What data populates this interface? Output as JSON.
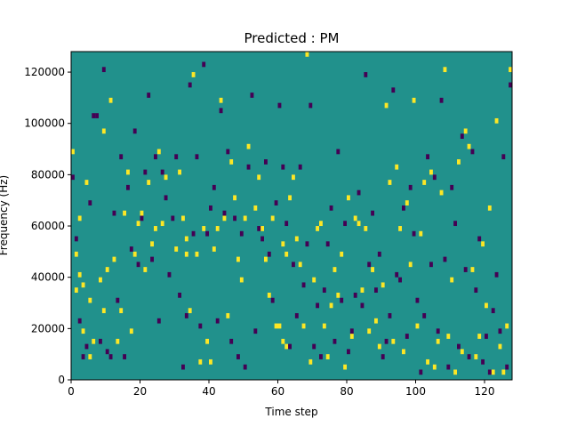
{
  "chart_data": {
    "type": "heatmap",
    "title": "Predicted : PM",
    "xlabel": "Time step",
    "ylabel": "Frequency (Hz)",
    "xlim": [
      0,
      128
    ],
    "ylim": [
      0,
      128000
    ],
    "x_ticks": [
      0,
      20,
      40,
      60,
      80,
      100,
      120
    ],
    "y_ticks": [
      0,
      20000,
      40000,
      60000,
      80000,
      100000,
      120000
    ],
    "x_tick_labels": [
      "0",
      "20",
      "40",
      "60",
      "80",
      "100",
      "120"
    ],
    "y_tick_labels": [
      "0",
      "20000",
      "40000",
      "60000",
      "80000",
      "100000",
      "120000"
    ],
    "grid": false,
    "legend": "none",
    "colors": {
      "background_value": "#21918c",
      "high_value": "#fde725",
      "low_value": "#440154"
    },
    "cells": {
      "time_step_width": 1,
      "frequency_bin_height": 2000,
      "high": [
        [
          0,
          88000
        ],
        [
          1,
          48000
        ],
        [
          1,
          34000
        ],
        [
          2,
          62000
        ],
        [
          2,
          40000
        ],
        [
          3,
          36000
        ],
        [
          3,
          18000
        ],
        [
          4,
          76000
        ],
        [
          5,
          30000
        ],
        [
          5,
          8000
        ],
        [
          6,
          14000
        ],
        [
          8,
          38000
        ],
        [
          9,
          26000
        ],
        [
          9,
          96000
        ],
        [
          10,
          42000
        ],
        [
          11,
          108000
        ],
        [
          12,
          46000
        ],
        [
          13,
          14000
        ],
        [
          14,
          26000
        ],
        [
          15,
          64000
        ],
        [
          16,
          80000
        ],
        [
          17,
          18000
        ],
        [
          18,
          48000
        ],
        [
          19,
          60000
        ],
        [
          20,
          64000
        ],
        [
          21,
          42000
        ],
        [
          22,
          76000
        ],
        [
          23,
          52000
        ],
        [
          24,
          58000
        ],
        [
          25,
          88000
        ],
        [
          26,
          60000
        ],
        [
          27,
          78000
        ],
        [
          30,
          50000
        ],
        [
          31,
          80000
        ],
        [
          32,
          62000
        ],
        [
          33,
          54000
        ],
        [
          33,
          48000
        ],
        [
          34,
          26000
        ],
        [
          35,
          118000
        ],
        [
          36,
          48000
        ],
        [
          37,
          6000
        ],
        [
          38,
          58000
        ],
        [
          39,
          14000
        ],
        [
          40,
          6000
        ],
        [
          41,
          50000
        ],
        [
          42,
          58000
        ],
        [
          43,
          108000
        ],
        [
          44,
          62000
        ],
        [
          45,
          24000
        ],
        [
          46,
          84000
        ],
        [
          47,
          70000
        ],
        [
          48,
          46000
        ],
        [
          49,
          38000
        ],
        [
          50,
          62000
        ],
        [
          51,
          90000
        ],
        [
          53,
          66000
        ],
        [
          54,
          78000
        ],
        [
          55,
          58000
        ],
        [
          56,
          46000
        ],
        [
          57,
          32000
        ],
        [
          58,
          62000
        ],
        [
          59,
          20000
        ],
        [
          60,
          20000
        ],
        [
          61,
          52000
        ],
        [
          61,
          14000
        ],
        [
          62,
          48000
        ],
        [
          62,
          12000
        ],
        [
          63,
          70000
        ],
        [
          64,
          78000
        ],
        [
          65,
          54000
        ],
        [
          66,
          44000
        ],
        [
          67,
          20000
        ],
        [
          68,
          126000
        ],
        [
          69,
          6000
        ],
        [
          70,
          38000
        ],
        [
          71,
          58000
        ],
        [
          72,
          60000
        ],
        [
          73,
          20000
        ],
        [
          74,
          8000
        ],
        [
          75,
          28000
        ],
        [
          76,
          42000
        ],
        [
          77,
          32000
        ],
        [
          78,
          48000
        ],
        [
          79,
          4000
        ],
        [
          80,
          70000
        ],
        [
          81,
          16000
        ],
        [
          82,
          62000
        ],
        [
          83,
          60000
        ],
        [
          84,
          34000
        ],
        [
          85,
          58000
        ],
        [
          86,
          18000
        ],
        [
          87,
          42000
        ],
        [
          88,
          22000
        ],
        [
          89,
          12000
        ],
        [
          90,
          36000
        ],
        [
          91,
          106000
        ],
        [
          92,
          76000
        ],
        [
          93,
          14000
        ],
        [
          94,
          82000
        ],
        [
          95,
          58000
        ],
        [
          96,
          10000
        ],
        [
          97,
          68000
        ],
        [
          98,
          44000
        ],
        [
          99,
          108000
        ],
        [
          100,
          20000
        ],
        [
          101,
          56000
        ],
        [
          102,
          76000
        ],
        [
          103,
          6000
        ],
        [
          104,
          80000
        ],
        [
          105,
          4000
        ],
        [
          106,
          14000
        ],
        [
          107,
          72000
        ],
        [
          108,
          120000
        ],
        [
          109,
          16000
        ],
        [
          110,
          38000
        ],
        [
          111,
          2000
        ],
        [
          112,
          84000
        ],
        [
          113,
          10000
        ],
        [
          114,
          96000
        ],
        [
          115,
          90000
        ],
        [
          116,
          42000
        ],
        [
          117,
          8000
        ],
        [
          118,
          16000
        ],
        [
          119,
          52000
        ],
        [
          120,
          28000
        ],
        [
          121,
          66000
        ],
        [
          122,
          2000
        ],
        [
          123,
          100000
        ],
        [
          124,
          12000
        ],
        [
          125,
          2000
        ],
        [
          126,
          20000
        ],
        [
          127,
          120000
        ]
      ],
      "low": [
        [
          0,
          78000
        ],
        [
          1,
          54000
        ],
        [
          2,
          22000
        ],
        [
          3,
          8000
        ],
        [
          4,
          12000
        ],
        [
          5,
          68000
        ],
        [
          6,
          102000
        ],
        [
          7,
          102000
        ],
        [
          8,
          14000
        ],
        [
          9,
          120000
        ],
        [
          10,
          10000
        ],
        [
          11,
          8000
        ],
        [
          12,
          64000
        ],
        [
          13,
          30000
        ],
        [
          14,
          86000
        ],
        [
          15,
          8000
        ],
        [
          16,
          74000
        ],
        [
          17,
          50000
        ],
        [
          18,
          96000
        ],
        [
          19,
          44000
        ],
        [
          20,
          62000
        ],
        [
          21,
          80000
        ],
        [
          22,
          110000
        ],
        [
          23,
          46000
        ],
        [
          24,
          86000
        ],
        [
          25,
          22000
        ],
        [
          26,
          80000
        ],
        [
          27,
          70000
        ],
        [
          28,
          40000
        ],
        [
          29,
          62000
        ],
        [
          30,
          86000
        ],
        [
          31,
          32000
        ],
        [
          32,
          4000
        ],
        [
          33,
          24000
        ],
        [
          34,
          114000
        ],
        [
          35,
          56000
        ],
        [
          36,
          86000
        ],
        [
          37,
          20000
        ],
        [
          38,
          122000
        ],
        [
          39,
          56000
        ],
        [
          40,
          66000
        ],
        [
          41,
          74000
        ],
        [
          42,
          22000
        ],
        [
          43,
          104000
        ],
        [
          44,
          64000
        ],
        [
          45,
          88000
        ],
        [
          46,
          14000
        ],
        [
          47,
          62000
        ],
        [
          48,
          8000
        ],
        [
          49,
          56000
        ],
        [
          50,
          4000
        ],
        [
          51,
          82000
        ],
        [
          52,
          110000
        ],
        [
          53,
          18000
        ],
        [
          54,
          58000
        ],
        [
          55,
          54000
        ],
        [
          56,
          84000
        ],
        [
          57,
          48000
        ],
        [
          58,
          30000
        ],
        [
          59,
          68000
        ],
        [
          60,
          106000
        ],
        [
          61,
          82000
        ],
        [
          62,
          60000
        ],
        [
          63,
          12000
        ],
        [
          64,
          44000
        ],
        [
          65,
          24000
        ],
        [
          66,
          82000
        ],
        [
          67,
          36000
        ],
        [
          68,
          52000
        ],
        [
          69,
          106000
        ],
        [
          70,
          12000
        ],
        [
          71,
          28000
        ],
        [
          72,
          8000
        ],
        [
          73,
          34000
        ],
        [
          74,
          52000
        ],
        [
          75,
          66000
        ],
        [
          76,
          14000
        ],
        [
          77,
          88000
        ],
        [
          78,
          30000
        ],
        [
          79,
          60000
        ],
        [
          80,
          10000
        ],
        [
          81,
          18000
        ],
        [
          82,
          32000
        ],
        [
          83,
          72000
        ],
        [
          84,
          28000
        ],
        [
          85,
          118000
        ],
        [
          86,
          44000
        ],
        [
          87,
          64000
        ],
        [
          88,
          34000
        ],
        [
          89,
          48000
        ],
        [
          90,
          8000
        ],
        [
          91,
          14000
        ],
        [
          92,
          24000
        ],
        [
          93,
          112000
        ],
        [
          94,
          40000
        ],
        [
          95,
          38000
        ],
        [
          96,
          66000
        ],
        [
          97,
          16000
        ],
        [
          98,
          74000
        ],
        [
          99,
          56000
        ],
        [
          100,
          30000
        ],
        [
          101,
          2000
        ],
        [
          102,
          24000
        ],
        [
          103,
          86000
        ],
        [
          104,
          44000
        ],
        [
          105,
          78000
        ],
        [
          106,
          18000
        ],
        [
          107,
          108000
        ],
        [
          108,
          46000
        ],
        [
          109,
          4000
        ],
        [
          110,
          74000
        ],
        [
          111,
          60000
        ],
        [
          112,
          12000
        ],
        [
          113,
          94000
        ],
        [
          114,
          42000
        ],
        [
          115,
          8000
        ],
        [
          116,
          88000
        ],
        [
          117,
          34000
        ],
        [
          118,
          54000
        ],
        [
          119,
          6000
        ],
        [
          120,
          16000
        ],
        [
          121,
          2000
        ],
        [
          122,
          26000
        ],
        [
          123,
          40000
        ],
        [
          124,
          18000
        ],
        [
          125,
          86000
        ],
        [
          126,
          4000
        ],
        [
          127,
          114000
        ]
      ]
    }
  }
}
